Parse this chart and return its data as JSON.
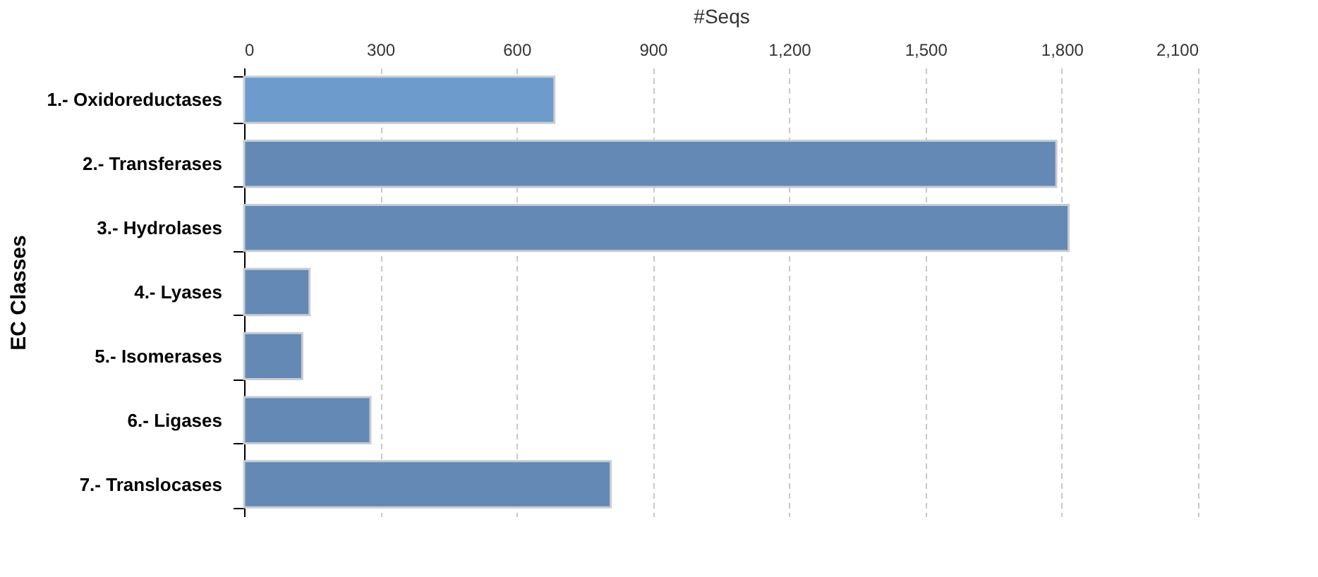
{
  "chart_data": {
    "type": "bar",
    "orientation": "horizontal",
    "xlabel": "#Seqs",
    "ylabel": "EC Classes",
    "categories": [
      "1.- Oxidoreductases",
      "2.- Transferases",
      "3.- Hydrolases",
      "4.- Lyases",
      "5.- Isomerases",
      "6.- Ligases",
      "7.- Translocases"
    ],
    "values": [
      683,
      1788,
      1815,
      144,
      128,
      278,
      807
    ],
    "colors": [
      "#6c9bcc",
      "#6489b4",
      "#6489b4",
      "#6489b4",
      "#6489b4",
      "#6489b4",
      "#6489b4"
    ],
    "xlim": [
      0,
      2100
    ],
    "xticks": [
      0,
      {
        "value": 300,
        "label": "300"
      },
      {
        "value": 600,
        "label": "600"
      },
      {
        "value": 900,
        "label": "900"
      },
      {
        "value": 1200,
        "label": "1,200"
      },
      {
        "value": 1500,
        "label": "1,500"
      },
      {
        "value": 1800,
        "label": "1,800"
      },
      {
        "value": 2100,
        "label": "2,100"
      }
    ],
    "grid": "x"
  }
}
